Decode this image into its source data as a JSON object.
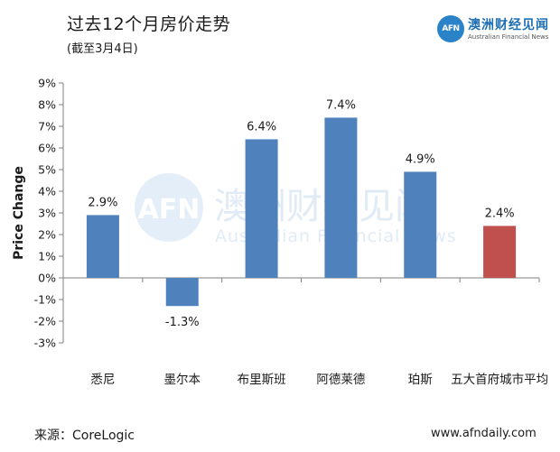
{
  "header": {
    "title": "过去12个月房价走势",
    "subtitle": "(截至3月4日)"
  },
  "logo": {
    "mark": "AFN",
    "name_cn": "澳洲财经见闻",
    "name_en": "Australian Financial News"
  },
  "watermark": {
    "mark": "AFN",
    "name_cn": "澳洲财经见闻",
    "name_en": "Australian Financial News"
  },
  "footer": {
    "source": "来源：CoreLogic",
    "website": "www.afndaily.com"
  },
  "colors": {
    "primary_bar": "#4f81bd",
    "highlight_bar": "#c0504d",
    "logo_blue": "#2a82c9"
  },
  "chart_data": {
    "type": "bar",
    "ylabel": "Price Change",
    "xlabel": "",
    "ylim": [
      -3,
      9
    ],
    "yticks": [
      "-3%",
      "-2%",
      "-1%",
      "0%",
      "1%",
      "2%",
      "3%",
      "4%",
      "5%",
      "6%",
      "7%",
      "8%",
      "9%"
    ],
    "categories": [
      "悉尼",
      "墨尔本",
      "布里斯班",
      "阿德莱德",
      "珀斯",
      "五大首府城市平均"
    ],
    "values": [
      2.9,
      -1.3,
      6.4,
      7.4,
      4.9,
      2.4
    ],
    "data_labels": [
      "2.9%",
      "-1.3%",
      "6.4%",
      "7.4%",
      "4.9%",
      "2.4%"
    ],
    "highlight_index": 5,
    "grid": false,
    "legend": "none"
  }
}
